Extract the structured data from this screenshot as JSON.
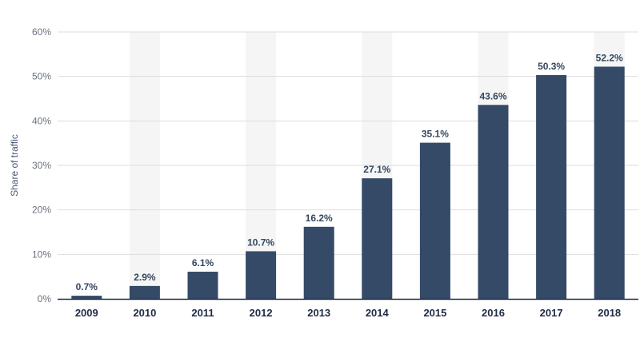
{
  "chart_data": {
    "type": "bar",
    "title": "",
    "xlabel": "",
    "ylabel": "Share of traffic",
    "categories": [
      "2009",
      "2010",
      "2011",
      "2012",
      "2013",
      "2014",
      "2015",
      "2016",
      "2017",
      "2018"
    ],
    "values": [
      0.7,
      2.9,
      6.1,
      10.7,
      16.2,
      27.1,
      35.1,
      43.6,
      50.3,
      52.2
    ],
    "value_labels": [
      "0.7%",
      "2.9%",
      "6.1%",
      "10.7%",
      "16.2%",
      "27.1%",
      "35.1%",
      "43.6%",
      "50.3%",
      "52.2%"
    ],
    "ylim": [
      0,
      60
    ],
    "yticks": [
      0,
      10,
      20,
      30,
      40,
      50,
      60
    ],
    "ytick_labels": [
      "0%",
      "10%",
      "20%",
      "30%",
      "40%",
      "50%",
      "60%"
    ],
    "grid": true,
    "bar_color": "#344a66",
    "alt_band_color": "#f5f5f5",
    "grid_color": "#dddddd",
    "baseline_color": "#1f2a44"
  }
}
